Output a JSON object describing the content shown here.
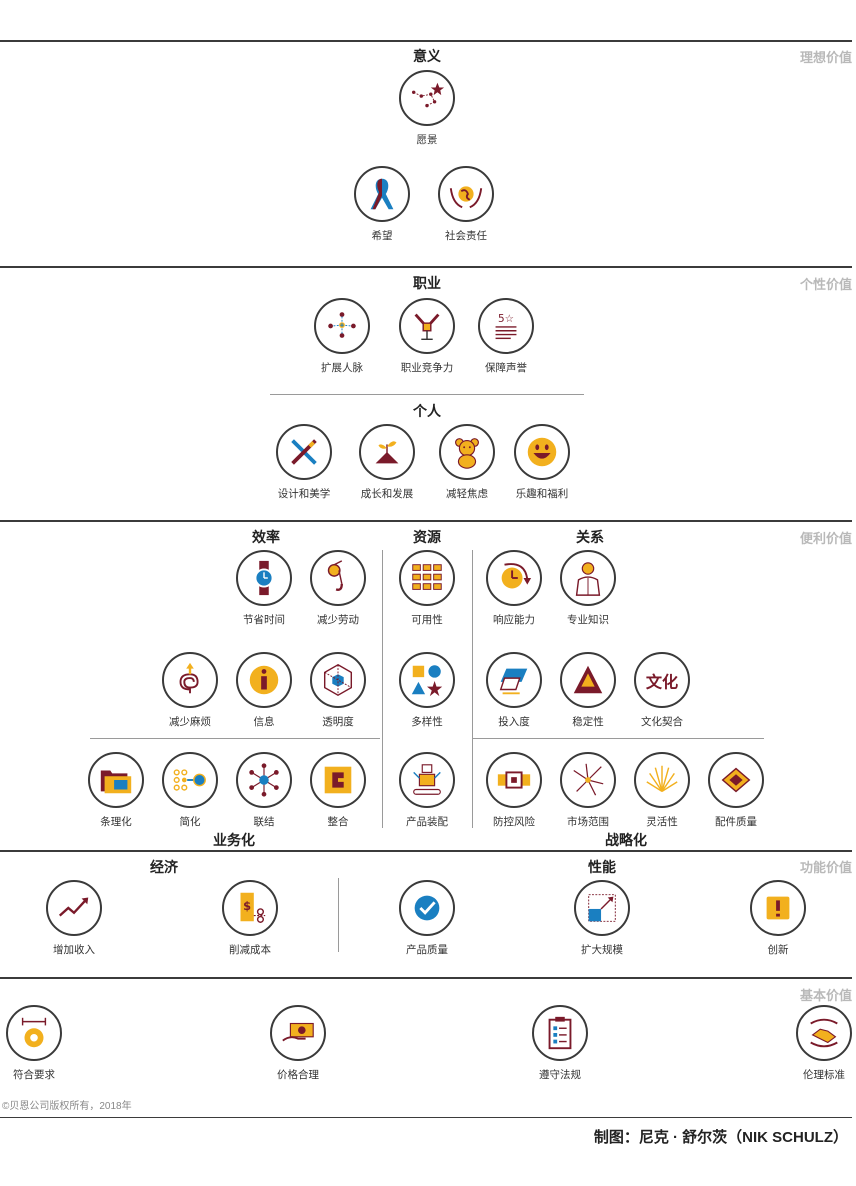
{
  "tiers": {
    "ideal": "理想价值",
    "personal": "个性价值",
    "convenience": "便利价值",
    "functional": "功能价值",
    "basic": "基本价值"
  },
  "headings": {
    "meaning": "意义",
    "career": "职业",
    "individual": "个人",
    "efficiency": "效率",
    "resources": "资源",
    "relations": "关系",
    "business": "业务化",
    "strategic": "战略化",
    "economy": "经济",
    "performance": "性能"
  },
  "items": {
    "vision": "愿景",
    "hope": "希望",
    "social_responsibility": "社会责任",
    "network": "扩展人脉",
    "competitiveness": "职业竞争力",
    "reputation": "保障声誉",
    "design": "设计和美学",
    "growth": "成长和发展",
    "anxiety": "减轻焦虑",
    "fun": "乐趣和福利",
    "save_time": "节省时间",
    "reduce_effort": "减少劳动",
    "availability": "可用性",
    "responsiveness": "响应能力",
    "expertise": "专业知识",
    "reduce_hassle": "减少麻烦",
    "information": "信息",
    "transparency": "透明度",
    "variety": "多样性",
    "commitment": "投入度",
    "stability": "稳定性",
    "culture_fit": "文化契合",
    "organization": "条理化",
    "simplification": "简化",
    "connection": "联结",
    "integration": "整合",
    "configurability": "产品装配",
    "risk_reduction": "防控风险",
    "reach": "市场范围",
    "flexibility": "灵活性",
    "component_quality": "配件质量",
    "revenue": "增加收入",
    "cost_reduction": "削减成本",
    "product_quality": "产品质量",
    "scalability": "扩大规模",
    "innovation": "创新",
    "specifications": "符合要求",
    "price": "价格合理",
    "compliance": "遵守法规",
    "ethics": "伦理标准"
  },
  "icon_text": {
    "culture_icon": "文化",
    "reputation_icon": "5☆"
  },
  "footer": {
    "copyright": "©贝恩公司版权所有，2018年",
    "credit": "制图：尼克 · 舒尔茨（NIK SCHULZ）"
  },
  "colors": {
    "maroon": "#7a1a2a",
    "gold": "#f2b01e",
    "blue": "#1a7fc1",
    "rule": "#3b3b3b",
    "tier_label": "#b9b9b9"
  }
}
